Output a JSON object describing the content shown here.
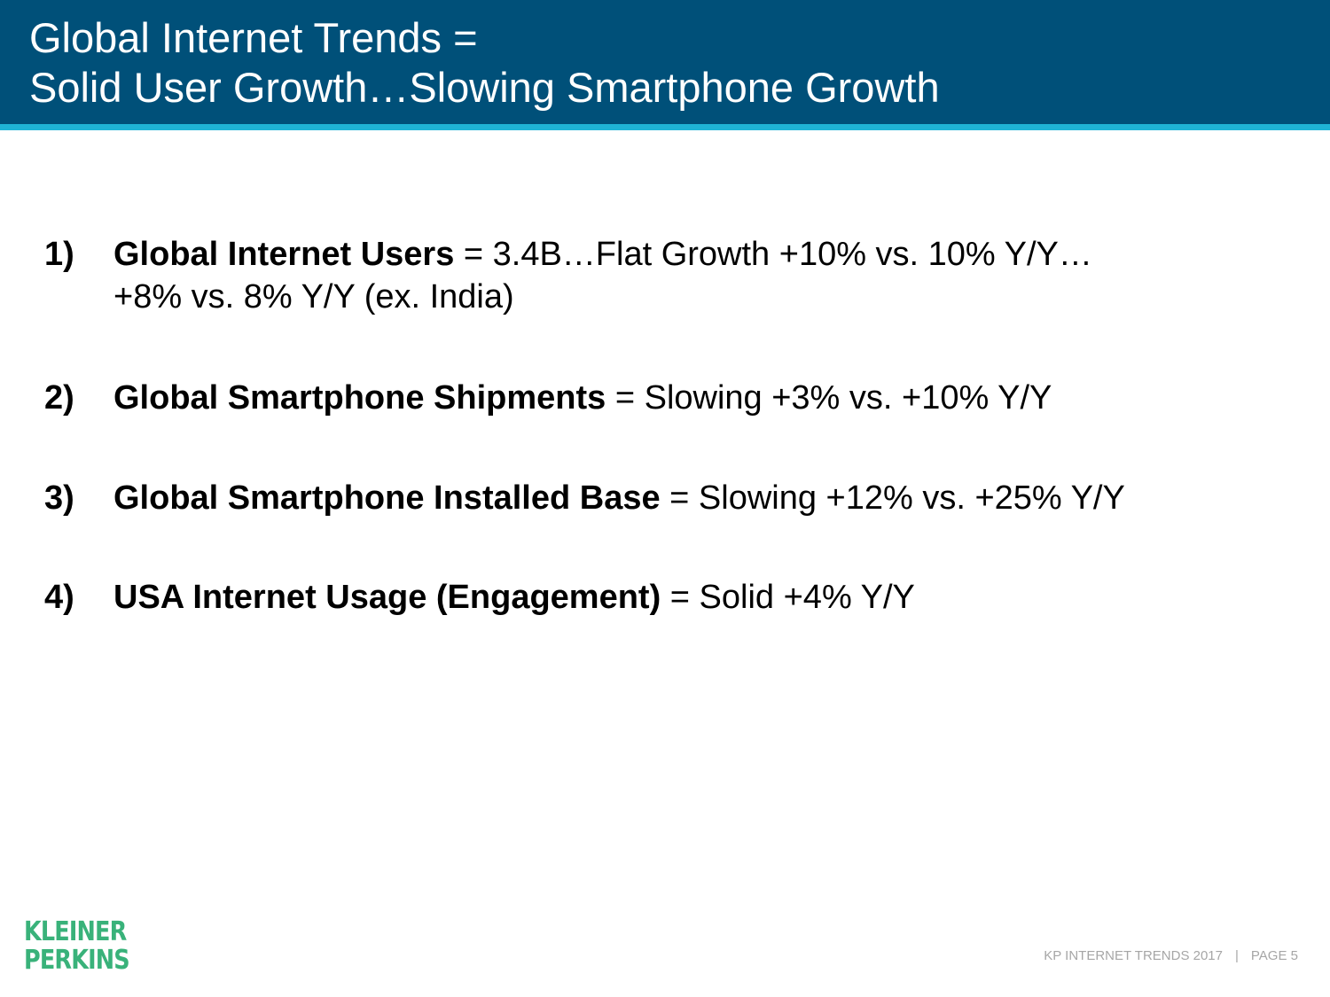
{
  "header": {
    "title_line1": "Global Internet Trends =",
    "title_line2": "Solid User Growth…Slowing Smartphone Growth"
  },
  "items": [
    {
      "number": "1)",
      "bold": "Global Internet Users",
      "rest": " = 3.4B…Flat Growth +10% vs. 10% Y/Y…",
      "line2": "+8% vs. 8% Y/Y (ex. India)"
    },
    {
      "number": "2)",
      "bold": "Global Smartphone Shipments",
      "rest": " = Slowing +3% vs. +10% Y/Y"
    },
    {
      "number": "3)",
      "bold": "Global Smartphone Installed Base",
      "rest": " = Slowing +12% vs. +25% Y/Y"
    },
    {
      "number": "4)",
      "bold": "USA Internet Usage (Engagement)",
      "rest": " = Solid +4% Y/Y"
    }
  ],
  "logo": {
    "line1": "KLEINER",
    "line2": "PERKINS"
  },
  "footer": {
    "label": "KP INTERNET TRENDS 2017",
    "separator": "|",
    "page": "PAGE 5"
  },
  "colors": {
    "header_bg": "#005079",
    "header_rule": "#1fb3d5",
    "logo": "#39b27a",
    "footer_text": "#a6a6a6"
  }
}
